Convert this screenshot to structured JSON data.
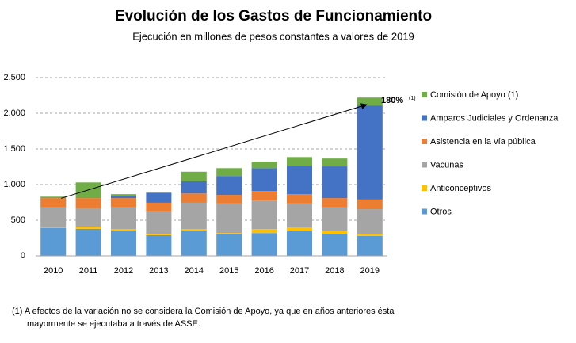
{
  "chart_data": {
    "type": "stacked_bar",
    "title": "Evolución de los Gastos de Funcionamiento",
    "subtitle": "Ejecución en millones de pesos constantes a valores de 2019",
    "categories": [
      "2010",
      "2011",
      "2012",
      "2013",
      "2014",
      "2015",
      "2016",
      "2017",
      "2018",
      "2019"
    ],
    "series": [
      {
        "name": "Otros",
        "color": "#5b9bd5",
        "values": [
          390,
          380,
          355,
          290,
          355,
          300,
          320,
          345,
          310,
          280
        ]
      },
      {
        "name": "Anticonceptivos",
        "color": "#ffc000",
        "values": [
          5,
          30,
          20,
          20,
          20,
          20,
          55,
          55,
          45,
          20
        ]
      },
      {
        "name": "Vacunas",
        "color": "#a5a5a5",
        "values": [
          285,
          260,
          305,
          315,
          370,
          415,
          400,
          335,
          325,
          355
        ]
      },
      {
        "name": "Asistencia en la vía pública",
        "color": "#ed7d31",
        "values": [
          130,
          140,
          130,
          120,
          130,
          120,
          135,
          130,
          130,
          135
        ]
      },
      {
        "name": "Amparos Judiciales y Ordenanza",
        "color": "#4472c4",
        "values": [
          0,
          0,
          30,
          135,
          170,
          265,
          320,
          400,
          445,
          1320
        ]
      },
      {
        "name": "Comisión de Apoyo (1)",
        "color": "#70ad47",
        "values": [
          20,
          220,
          25,
          10,
          135,
          110,
          90,
          120,
          110,
          110
        ]
      }
    ],
    "ylim": [
      0,
      2500
    ],
    "yticks": [
      0,
      500,
      {
        "value": 1000,
        "label": "1.000"
      },
      {
        "value": 1500,
        "label": "1.500"
      },
      {
        "value": 2000,
        "label": "2.000"
      },
      {
        "value": 2500,
        "label": "2.500"
      }
    ],
    "grid": true,
    "annotation": "180%",
    "annotation_note": "(1)",
    "footnote": [
      "(1)  A efectos de la variación no se considera la Comisión de Apoyo, ya que en años anteriores ésta",
      "mayormente se ejecutaba a través de ASSE."
    ]
  }
}
